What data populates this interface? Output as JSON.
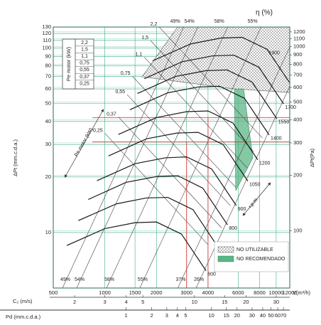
{
  "chart_data": {
    "type": "fan-curves",
    "y_label": "ΔPt (mm.c.d.a.)",
    "y2_label": "ΔPt(Pa)",
    "x_label": "V(m³/h)",
    "efficiency_label": "η (%)",
    "power_label": "Pe motor (kW)",
    "speed_label": "r.p.m.",
    "xlim": [
      500,
      12000
    ],
    "xticks": [
      500,
      1000,
      1500,
      2000,
      3000,
      4000,
      6000,
      8000,
      10000,
      12000
    ],
    "ylim": [
      5,
      130
    ],
    "yticks": [
      10,
      20,
      30,
      40,
      50,
      60,
      70,
      80,
      90,
      100,
      110,
      120,
      130
    ],
    "y2lim": [
      49,
      1275
    ],
    "y2ticks": [
      100,
      200,
      300,
      400,
      500,
      600,
      700,
      800,
      900,
      1000,
      1100,
      1200
    ],
    "log_x": true,
    "log_y": true,
    "grid": true,
    "grid_color": "#3fae84",
    "curve_color": "#1a1a1a",
    "line_color": "#444444",
    "series": [
      {
        "name": "600",
        "x": [
          600,
          1000,
          1500,
          2000,
          2800,
          3900
        ],
        "values": [
          8.5,
          10.5,
          11.3,
          11.4,
          9.8,
          6.2
        ]
      },
      {
        "name": "700",
        "x": [
          700,
          1170,
          1750,
          2330,
          3270,
          4550
        ],
        "values": [
          11.6,
          14.3,
          15.4,
          15.5,
          13.3,
          8.4
        ]
      },
      {
        "name": "800",
        "x": [
          800,
          1330,
          2000,
          2670,
          3730,
          5200
        ],
        "values": [
          15.1,
          18.7,
          20.1,
          20.3,
          17.4,
          11.0
        ]
      },
      {
        "name": "900",
        "x": [
          900,
          1500,
          2250,
          3000,
          4200,
          5850
        ],
        "values": [
          19.1,
          23.6,
          25.4,
          25.7,
          22.1,
          14.0
        ]
      },
      {
        "name": "1050",
        "x": [
          1050,
          1750,
          2630,
          3500,
          4900,
          6830
        ],
        "values": [
          26.0,
          32.2,
          34.6,
          34.9,
          30.0,
          19.0
        ]
      },
      {
        "name": "1200",
        "x": [
          1200,
          2000,
          3000,
          4000,
          5600,
          7800
        ],
        "values": [
          34.0,
          42.0,
          45.2,
          45.6,
          39.2,
          24.8
        ]
      },
      {
        "name": "1400",
        "x": [
          1400,
          2330,
          3500,
          4670,
          6530,
          9100
        ],
        "values": [
          46.3,
          57.2,
          61.5,
          62.1,
          53.4,
          33.8
        ]
      },
      {
        "name": "1550",
        "x": [
          1550,
          2580,
          3880,
          5170,
          7230,
          10080
        ],
        "values": [
          56.7,
          70.1,
          75.4,
          76.1,
          65.4,
          41.4
        ]
      },
      {
        "name": "1700",
        "x": [
          1700,
          2830,
          4250,
          5670,
          7930,
          11050
        ],
        "values": [
          68.2,
          84.3,
          90.7,
          91.5,
          78.7,
          49.8
        ]
      },
      {
        "name": "1900",
        "x": [
          1900,
          3170,
          4750,
          6330,
          8870,
          12350
        ],
        "values": [
          85.3,
          105.3,
          113.3,
          114.3,
          98.3,
          62.2
        ]
      }
    ],
    "motor_lines": [
      {
        "label": "2,2",
        "x": [
          2080,
          8320
        ],
        "values": [
          129.8,
          32.5
        ]
      },
      {
        "label": "1,5",
        "x": [
          1850,
          7400
        ],
        "values": [
          109.7,
          27.4
        ]
      },
      {
        "label": "1,1",
        "x": [
          1700,
          6800
        ],
        "values": [
          89.2,
          22.3
        ]
      },
      {
        "label": "0,75",
        "x": [
          1450,
          5800
        ],
        "values": [
          70.3,
          17.6
        ]
      },
      {
        "label": "0,55",
        "x": [
          1350,
          5400
        ],
        "values": [
          55.9,
          14.0
        ]
      },
      {
        "label": "0,37",
        "x": [
          1200,
          4800
        ],
        "values": [
          42.3,
          10.6
        ]
      },
      {
        "label": "0,25",
        "x": [
          1000,
          4000
        ],
        "values": [
          34.5,
          8.6
        ]
      }
    ],
    "efficiency_lines": [
      {
        "label": "49%",
        "label_top": "49%",
        "x": [
          566,
          2886
        ],
        "values": [
          5,
          130
        ]
      },
      {
        "label": "54%",
        "label_top": "54%",
        "x": [
          685,
          3493
        ],
        "values": [
          5,
          130
        ]
      },
      {
        "label": "58%",
        "label_top": "58%",
        "x": [
          1023,
          5216
        ],
        "values": [
          5,
          130
        ]
      },
      {
        "label": "55%",
        "label_top": "55%",
        "x": [
          1601,
          8164
        ],
        "values": [
          5,
          130
        ]
      },
      {
        "label": "37%",
        "x": [
          2668,
          13600
        ],
        "values": [
          5,
          130
        ]
      },
      {
        "label": "26%",
        "x": [
          3408,
          17380
        ],
        "values": [
          5,
          130
        ]
      }
    ],
    "reference_lines": {
      "x": [
        4000,
        3000
      ],
      "values": [
        42,
        31
      ],
      "color": "#e03a3a"
    },
    "legend": [
      "NO UTILIZABLE",
      "NO RECOMENDADO"
    ],
    "c2_axis": {
      "label": "C₂ (m/s)",
      "lim": [
        1.5,
        36
      ],
      "ticks": [
        2,
        3,
        4,
        5,
        10,
        15,
        20,
        30
      ]
    },
    "pd_axis": {
      "label": "Pd (mm.c.d.a.)",
      "lim": [
        0.14,
        83
      ],
      "ticks": [
        1,
        2,
        3,
        4,
        5,
        10,
        15,
        20,
        30,
        40,
        50,
        60,
        70
      ]
    }
  }
}
